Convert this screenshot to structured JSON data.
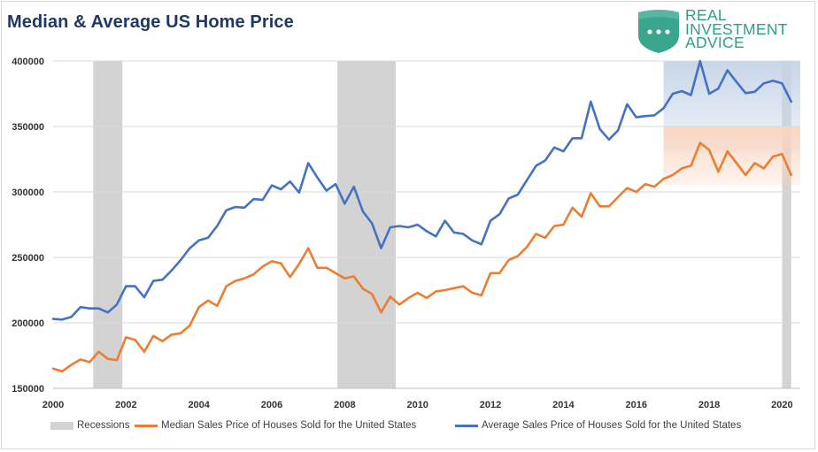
{
  "title": "Median & Average US Home Price",
  "logo": {
    "line1": "REAL",
    "line2": "INVESTMENT",
    "line3": "ADVICE",
    "color": "#3aa68e"
  },
  "chart_data": {
    "type": "line",
    "xlim": [
      2000,
      2020.5
    ],
    "ylim": [
      150000,
      400000
    ],
    "yticks": [
      150000,
      200000,
      250000,
      300000,
      350000,
      400000
    ],
    "yticklabels": [
      "150000",
      "200000",
      "250000",
      "300000",
      "350000",
      "400000"
    ],
    "xticks": [
      2000,
      2002,
      2004,
      2006,
      2008,
      2010,
      2012,
      2014,
      2016,
      2018,
      2020
    ],
    "xticklabels": [
      "2000",
      "2002",
      "2004",
      "2006",
      "2008",
      "2010",
      "2012",
      "2014",
      "2016",
      "2018",
      "2020"
    ],
    "grid": "horizontal",
    "legend_position": "bottom",
    "recessions": [
      [
        2001.1,
        2001.9
      ],
      [
        2007.8,
        2009.4
      ],
      [
        2020.0,
        2020.25
      ]
    ],
    "highlights": [
      {
        "x": [
          2016.75,
          2020.5
        ],
        "y": [
          330000,
          400000
        ],
        "color": "#c5d4e8"
      },
      {
        "x": [
          2016.75,
          2020.5
        ],
        "y": [
          305000,
          350000
        ],
        "color": "#fbd5bf"
      }
    ],
    "x_start": 2000.0,
    "x_step": 0.25,
    "series": [
      {
        "name": "Median Sales Price of Houses Sold for the United States",
        "color": "#ed7d31",
        "values": [
          165000,
          163000,
          168000,
          172000,
          170000,
          178000,
          172500,
          171500,
          189000,
          187000,
          178000,
          190000,
          186000,
          191000,
          192000,
          198000,
          212000,
          217000,
          213000,
          228000,
          232000,
          234000,
          237000,
          243000,
          247000,
          245500,
          235000,
          245000,
          257000,
          242000,
          242000,
          238000,
          234000,
          235500,
          226000,
          222000,
          208000,
          220000,
          214000,
          219000,
          223000,
          219000,
          224000,
          225000,
          226500,
          228000,
          223000,
          221000,
          238000,
          238000,
          248000,
          251000,
          258000,
          268000,
          265000,
          274000,
          275000,
          288000,
          281000,
          299000,
          289000,
          289000,
          296000,
          303000,
          300000,
          306000,
          304000,
          310000,
          313000,
          318000,
          320000,
          337500,
          332000,
          315500,
          331000,
          322000,
          313000,
          322000,
          318000,
          327000,
          329000,
          313000
        ]
      },
      {
        "name": "Average Sales Price of Houses Sold for the United States",
        "color": "#4472c4",
        "values": [
          203000,
          202500,
          204500,
          212000,
          211000,
          211000,
          208000,
          214000,
          228000,
          228000,
          219500,
          232000,
          233000,
          240000,
          248000,
          257000,
          263000,
          265000,
          274000,
          286000,
          288500,
          288000,
          294500,
          294000,
          305000,
          302000,
          308000,
          299500,
          322000,
          311000,
          301000,
          306000,
          291000,
          304000,
          285000,
          276000,
          257000,
          273000,
          274000,
          273000,
          275000,
          270000,
          266000,
          278000,
          269000,
          268000,
          263000,
          260000,
          278000,
          283000,
          295000,
          298000,
          309000,
          320000,
          324000,
          334000,
          331000,
          341000,
          341000,
          369000,
          348000,
          340000,
          347000,
          367000,
          357000,
          358000,
          358500,
          364000,
          375000,
          377000,
          374000,
          400000,
          375000,
          379000,
          393000,
          384000,
          375500,
          376500,
          383000,
          385000,
          383000,
          369000
        ]
      }
    ],
    "legend": [
      {
        "name": "Recessions",
        "color": "#d3d3d3",
        "kind": "box"
      },
      {
        "name": "Median Sales Price of Houses Sold for the United States",
        "color": "#ed7d31",
        "kind": "line"
      },
      {
        "name": "Average Sales Price of Houses Sold for the United States",
        "color": "#4472c4",
        "kind": "line"
      }
    ]
  }
}
